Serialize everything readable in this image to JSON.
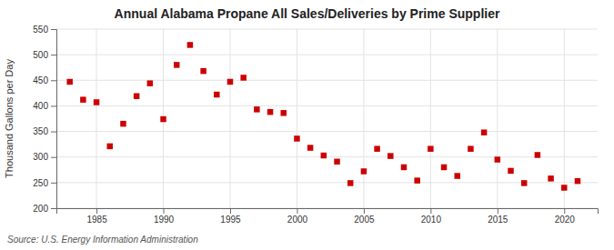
{
  "chart_data": {
    "type": "scatter",
    "title": "Annual Alabama Propane All Sales/Deliveries by Prime Supplier",
    "ylabel": "Thousand Gallons per Day",
    "source": "Source: U.S. Energy Information Administration",
    "color": "#cc0000",
    "marker": "square",
    "grid": true,
    "xlim": [
      1982,
      2022.5
    ],
    "ylim": [
      200,
      550
    ],
    "xticks": [
      1985,
      1990,
      1995,
      2000,
      2005,
      2010,
      2015,
      2020
    ],
    "yticks": [
      200,
      250,
      300,
      350,
      400,
      450,
      500,
      550
    ],
    "x": [
      1983,
      1984,
      1985,
      1986,
      1987,
      1988,
      1989,
      1990,
      1991,
      1992,
      1993,
      1994,
      1995,
      1996,
      1997,
      1998,
      1999,
      2000,
      2001,
      2002,
      2003,
      2004,
      2005,
      2006,
      2007,
      2008,
      2009,
      2010,
      2011,
      2012,
      2013,
      2014,
      2015,
      2016,
      2017,
      2018,
      2019,
      2020,
      2021
    ],
    "values": [
      447,
      412,
      407,
      321,
      365,
      419,
      444,
      374,
      480,
      519,
      468,
      422,
      447,
      455,
      393,
      388,
      386,
      336,
      318,
      303,
      291,
      249,
      272,
      316,
      302,
      280,
      254,
      316,
      280,
      263,
      316,
      348,
      295,
      273,
      249,
      304,
      258,
      240,
      253
    ]
  }
}
